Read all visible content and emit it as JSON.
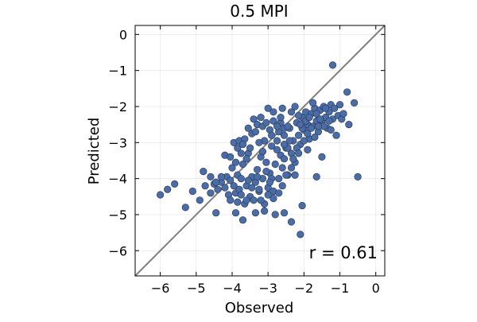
{
  "chart_data": {
    "type": "scatter",
    "title": "0.5 MPI",
    "xlabel": "Observed",
    "ylabel": "Predicted",
    "xlim": [
      -6.7,
      0.25
    ],
    "ylim": [
      -6.7,
      0.25
    ],
    "xticks": [
      -6,
      -5,
      -4,
      -3,
      -2,
      -1,
      0
    ],
    "yticks": [
      -6,
      -5,
      -4,
      -3,
      -2,
      -1,
      0
    ],
    "tick_labels_x": [
      "−6",
      "−5",
      "−4",
      "−3",
      "−2",
      "−1",
      "0"
    ],
    "tick_labels_y": [
      "−6",
      "−5",
      "−4",
      "−3",
      "−2",
      "−1",
      "0"
    ],
    "grid": true,
    "reference_line": "y = x",
    "annotation": "r = 0.61",
    "colors": {
      "points": "#4a6da8",
      "point_edge": "#26324d",
      "reference_line": "#808080"
    },
    "points": [
      [
        -6.0,
        -4.45
      ],
      [
        -5.8,
        -4.3
      ],
      [
        -5.6,
        -4.15
      ],
      [
        -5.3,
        -4.8
      ],
      [
        -5.1,
        -4.35
      ],
      [
        -4.9,
        -4.6
      ],
      [
        -4.8,
        -3.8
      ],
      [
        -4.6,
        -4.4
      ],
      [
        -4.5,
        -4.15
      ],
      [
        -4.4,
        -4.3
      ],
      [
        -4.3,
        -4.1
      ],
      [
        -4.2,
        -4.25
      ],
      [
        -4.15,
        -3.95
      ],
      [
        -4.1,
        -4.45
      ],
      [
        -4.05,
        -4.05
      ],
      [
        -4.0,
        -3.7
      ],
      [
        -3.95,
        -4.2
      ],
      [
        -3.9,
        -4.4
      ],
      [
        -3.85,
        -3.9
      ],
      [
        -3.8,
        -4.3
      ],
      [
        -3.75,
        -4.0
      ],
      [
        -3.7,
        -3.6
      ],
      [
        -3.65,
        -4.7
      ],
      [
        -3.6,
        -4.2
      ],
      [
        -3.55,
        -3.3
      ],
      [
        -3.5,
        -4.5
      ],
      [
        -3.45,
        -3.95
      ],
      [
        -3.4,
        -4.6
      ],
      [
        -3.35,
        -4.1
      ],
      [
        -3.3,
        -3.75
      ],
      [
        -3.25,
        -4.35
      ],
      [
        -3.2,
        -3.4
      ],
      [
        -3.15,
        -4.0
      ],
      [
        -3.1,
        -4.7
      ],
      [
        -3.05,
        -3.55
      ],
      [
        -3.0,
        -4.25
      ],
      [
        -2.95,
        -3.85
      ],
      [
        -2.9,
        -3.1
      ],
      [
        -2.85,
        -4.55
      ],
      [
        -2.8,
        -3.6
      ],
      [
        -2.75,
        -2.95
      ],
      [
        -2.7,
        -4.0
      ],
      [
        -2.65,
        -3.35
      ],
      [
        -2.6,
        -3.7
      ],
      [
        -2.55,
        -2.8
      ],
      [
        -2.5,
        -3.15
      ],
      [
        -2.45,
        -3.9
      ],
      [
        -2.4,
        -2.6
      ],
      [
        -2.35,
        -3.3
      ],
      [
        -2.3,
        -2.95
      ],
      [
        -2.25,
        -3.55
      ],
      [
        -2.2,
        -2.45
      ],
      [
        -2.15,
        -2.8
      ],
      [
        -2.1,
        -3.05
      ],
      [
        -2.05,
        -2.3
      ],
      [
        -2.0,
        -2.65
      ],
      [
        -1.95,
        -2.15
      ],
      [
        -1.9,
        -2.5
      ],
      [
        -1.85,
        -2.9
      ],
      [
        -1.8,
        -2.2
      ],
      [
        -1.75,
        -2.55
      ],
      [
        -1.7,
        -2.05
      ],
      [
        -1.65,
        -2.4
      ],
      [
        -1.6,
        -2.7
      ],
      [
        -1.55,
        -2.1
      ],
      [
        -1.5,
        -2.45
      ],
      [
        -1.45,
        -2.0
      ],
      [
        -1.4,
        -2.3
      ],
      [
        -1.35,
        -2.6
      ],
      [
        -1.3,
        -2.15
      ],
      [
        -1.25,
        -1.95
      ],
      [
        -1.2,
        -2.35
      ],
      [
        -1.15,
        -2.05
      ],
      [
        -1.1,
        -2.8
      ],
      [
        -1.05,
        -2.25
      ],
      [
        -1.0,
        -1.95
      ],
      [
        -0.95,
        -2.35
      ],
      [
        -0.9,
        -2.2
      ],
      [
        -0.8,
        -1.6
      ],
      [
        -0.75,
        -2.5
      ],
      [
        -0.6,
        -1.9
      ],
      [
        -0.5,
        -3.95
      ],
      [
        -1.2,
        -0.85
      ],
      [
        -1.5,
        -3.4
      ],
      [
        -1.65,
        -3.95
      ],
      [
        -2.05,
        -4.75
      ],
      [
        -2.1,
        -5.55
      ],
      [
        -2.35,
        -5.2
      ],
      [
        -2.55,
        -4.95
      ],
      [
        -2.8,
        -5.0
      ],
      [
        -3.1,
        -4.9
      ],
      [
        -3.35,
        -4.95
      ],
      [
        -3.7,
        -5.15
      ],
      [
        -3.9,
        -4.95
      ],
      [
        -4.45,
        -4.95
      ],
      [
        -4.2,
        -3.35
      ],
      [
        -3.95,
        -3.0
      ],
      [
        -3.8,
        -2.95
      ],
      [
        -3.55,
        -2.6
      ],
      [
        -3.4,
        -2.35
      ],
      [
        -3.2,
        -2.3
      ],
      [
        -3.0,
        -2.05
      ],
      [
        -2.85,
        -2.4
      ],
      [
        -2.6,
        -2.05
      ],
      [
        -2.55,
        -2.6
      ],
      [
        -2.7,
        -2.7
      ],
      [
        -2.95,
        -2.65
      ],
      [
        -3.1,
        -2.95
      ],
      [
        -3.25,
        -3.0
      ],
      [
        -3.5,
        -3.15
      ],
      [
        -3.6,
        -3.45
      ],
      [
        -3.75,
        -3.3
      ],
      [
        -3.9,
        -3.55
      ],
      [
        -4.05,
        -3.4
      ],
      [
        -3.85,
        -3.15
      ],
      [
        -3.45,
        -2.75
      ],
      [
        -3.3,
        -2.5
      ],
      [
        -3.15,
        -2.55
      ],
      [
        -2.9,
        -2.8
      ],
      [
        -2.75,
        -3.2
      ],
      [
        -2.55,
        -3.45
      ],
      [
        -2.35,
        -3.7
      ],
      [
        -2.25,
        -3.9
      ],
      [
        -2.6,
        -4.2
      ],
      [
        -2.85,
        -4.35
      ],
      [
        -3.05,
        -3.8
      ],
      [
        -3.3,
        -3.95
      ],
      [
        -3.55,
        -4.05
      ],
      [
        -3.75,
        -4.45
      ],
      [
        -3.6,
        -4.6
      ],
      [
        -3.2,
        -4.6
      ],
      [
        -3.0,
        -4.45
      ],
      [
        -2.7,
        -4.4
      ],
      [
        -2.9,
        -4.0
      ],
      [
        -3.15,
        -3.25
      ],
      [
        -2.35,
        -2.15
      ],
      [
        -2.25,
        -2.0
      ],
      [
        -2.15,
        -2.25
      ],
      [
        -2.05,
        -2.6
      ],
      [
        -1.95,
        -2.4
      ],
      [
        -1.85,
        -2.3
      ],
      [
        -1.75,
        -1.9
      ],
      [
        -1.65,
        -2.2
      ],
      [
        -1.55,
        -2.35
      ],
      [
        -1.45,
        -2.55
      ],
      [
        -1.4,
        -2.05
      ],
      [
        -1.3,
        -2.4
      ],
      [
        -1.9,
        -2.75
      ],
      [
        -2.0,
        -2.95
      ],
      [
        -2.2,
        -3.15
      ],
      [
        -2.4,
        -2.95
      ],
      [
        -2.45,
        -3.15
      ],
      [
        -2.55,
        -3.05
      ],
      [
        -2.65,
        -2.45
      ],
      [
        -2.75,
        -2.55
      ],
      [
        -2.85,
        -2.15
      ],
      [
        -3.05,
        -2.45
      ],
      [
        -3.35,
        -2.7
      ],
      [
        -3.65,
        -2.9
      ],
      [
        -3.7,
        -3.05
      ],
      [
        -4.3,
        -3.95
      ],
      [
        -4.45,
        -4.1
      ],
      [
        -4.6,
        -3.95
      ],
      [
        -4.75,
        -4.2
      ],
      [
        -4.05,
        -4.6
      ],
      [
        -3.85,
        -4.65
      ],
      [
        -3.45,
        -4.25
      ],
      [
        -3.25,
        -4.3
      ],
      [
        -2.95,
        -4.1
      ],
      [
        -2.5,
        -3.9
      ],
      [
        -2.3,
        -3.45
      ],
      [
        -2.15,
        -3.3
      ],
      [
        -1.9,
        -3.2
      ],
      [
        -1.7,
        -2.85
      ],
      [
        -1.6,
        -2.55
      ],
      [
        -1.8,
        -2.6
      ],
      [
        -2.1,
        -2.5
      ],
      [
        -2.45,
        -2.55
      ],
      [
        -2.65,
        -2.3
      ],
      [
        -1.25,
        -2.65
      ]
    ]
  }
}
